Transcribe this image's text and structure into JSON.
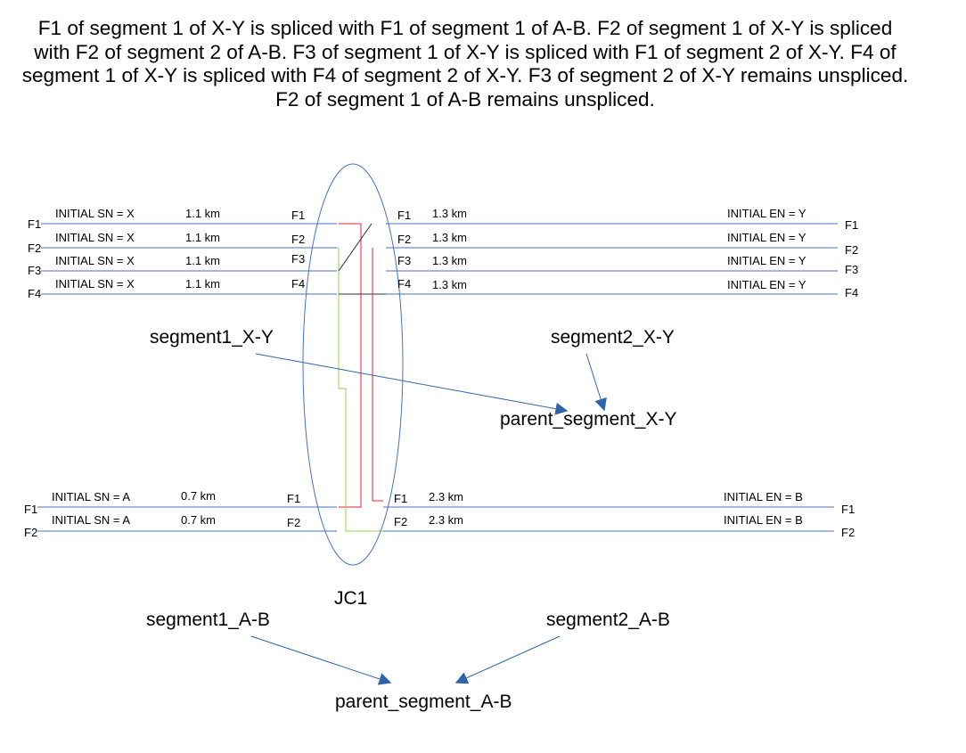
{
  "description": "F1 of segment 1 of X-Y is spliced with F1 of segment 1 of A-B. F2 of segment 1 of X-Y is spliced with F2 of segment 2 of A-B.  F3 of segment 1 of X-Y is spliced with F1 of segment 2 of X-Y. F4 of segment 1 of X-Y is spliced with F4 of segment 2 of X-Y. F3 of segment 2 of X-Y remains unspliced. F2 of segment 1 of A-B remains unspliced.",
  "junction_label": "JC1",
  "colors": {
    "fiber_line": "#4472c4",
    "splice_red": "#e8212b",
    "splice_green": "#92d050",
    "splice_lightgreen": "#b6dca0",
    "splice_dark": "#333333",
    "arrow": "#2f64ab"
  },
  "segments": {
    "segment1_xy": {
      "name": "segment1_X-Y",
      "fibers": [
        {
          "edge": "F1",
          "sn": "INITIAL SN = X",
          "len": "1.1 km",
          "inner": "F1"
        },
        {
          "edge": "F2",
          "sn": "INITIAL SN = X",
          "len": "1.1 km",
          "inner": "F2"
        },
        {
          "edge": "F3",
          "sn": "INITIAL SN = X",
          "len": "1.1 km",
          "inner": "F3"
        },
        {
          "edge": "F4",
          "sn": "INITIAL SN = X",
          "len": "1.1 km",
          "inner": "F4"
        }
      ]
    },
    "segment2_xy": {
      "name": "segment2_X-Y",
      "fibers": [
        {
          "inner": "F1",
          "len": "1.3 km",
          "en": "INITIAL EN = Y",
          "edge": "F1"
        },
        {
          "inner": "F2",
          "len": "1.3 km",
          "en": "INITIAL EN = Y",
          "edge": "F2"
        },
        {
          "inner": "F3",
          "len": "1.3 km",
          "en": "INITIAL EN = Y",
          "edge": "F3"
        },
        {
          "inner": "F4",
          "len": "1.3 km",
          "en": "INITIAL EN = Y",
          "edge": "F4"
        }
      ]
    },
    "segment1_ab": {
      "name": "segment1_A-B",
      "fibers": [
        {
          "edge": "F1",
          "sn": "INITIAL SN = A",
          "len": "0.7 km",
          "inner": "F1"
        },
        {
          "edge": "F2",
          "sn": "INITIAL SN = A",
          "len": "0.7 km",
          "inner": "F2"
        }
      ]
    },
    "segment2_ab": {
      "name": "segment2_A-B",
      "fibers": [
        {
          "inner": "F1",
          "len": "2.3 km",
          "en": "INITIAL EN = B",
          "edge": "F1"
        },
        {
          "inner": "F2",
          "len": "2.3 km",
          "en": "INITIAL EN = B",
          "edge": "F2"
        }
      ]
    }
  },
  "parents": {
    "xy": "parent_segment_X-Y",
    "ab": "parent_segment_A-B"
  }
}
